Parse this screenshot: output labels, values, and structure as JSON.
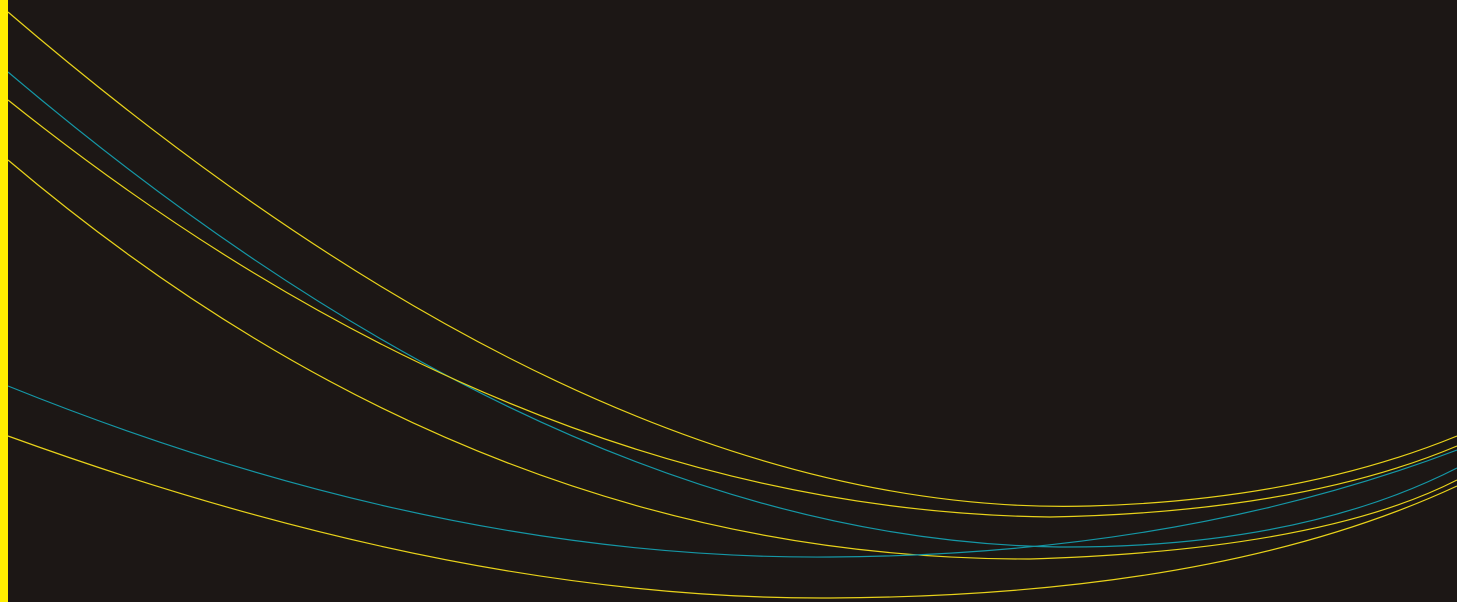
{
  "background_color": "#1c1715",
  "edge_bar_color": "#ffee00",
  "line_colors": {
    "yellow": "#e8d21a",
    "teal": "#1597a6"
  },
  "curves": [
    {
      "name": "curve-yellow-top",
      "color": "yellow"
    },
    {
      "name": "curve-teal-upper",
      "color": "teal"
    },
    {
      "name": "curve-yellow-second",
      "color": "yellow"
    },
    {
      "name": "curve-yellow-third",
      "color": "yellow"
    },
    {
      "name": "curve-teal-lower",
      "color": "teal"
    },
    {
      "name": "curve-yellow-bottom",
      "color": "yellow"
    }
  ]
}
